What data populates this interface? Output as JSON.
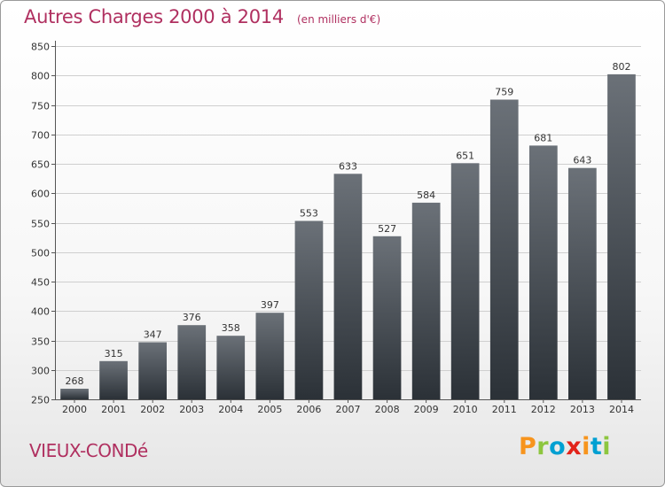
{
  "header": {
    "title": "Autres Charges 2000 à 2014",
    "unit": "(en milliers d'€)"
  },
  "footer": {
    "commune": "VIEUX-CONDé",
    "brand": "Proxiti",
    "brand_colors": [
      "#f7941d",
      "#8dc63f",
      "#00a0d2",
      "#e2231a",
      "#f7941d",
      "#00a0d2",
      "#8dc63f"
    ]
  },
  "chart_data": {
    "type": "bar",
    "title": "Autres Charges 2000 à 2014",
    "subtitle": "(en milliers d'€)",
    "categories": [
      "2000",
      "2001",
      "2002",
      "2003",
      "2004",
      "2005",
      "2006",
      "2007",
      "2008",
      "2009",
      "2010",
      "2011",
      "2012",
      "2013",
      "2014"
    ],
    "values": [
      268,
      315,
      347,
      376,
      358,
      397,
      553,
      633,
      527,
      584,
      651,
      759,
      681,
      643,
      802
    ],
    "ylim": [
      250,
      850
    ],
    "yticks": [
      250,
      300,
      350,
      400,
      450,
      500,
      550,
      600,
      650,
      700,
      750,
      800,
      850
    ],
    "grid": true,
    "bar_color_top": "#6b7178",
    "bar_color_bottom": "#2b3137",
    "accent_color": "#b03060"
  }
}
